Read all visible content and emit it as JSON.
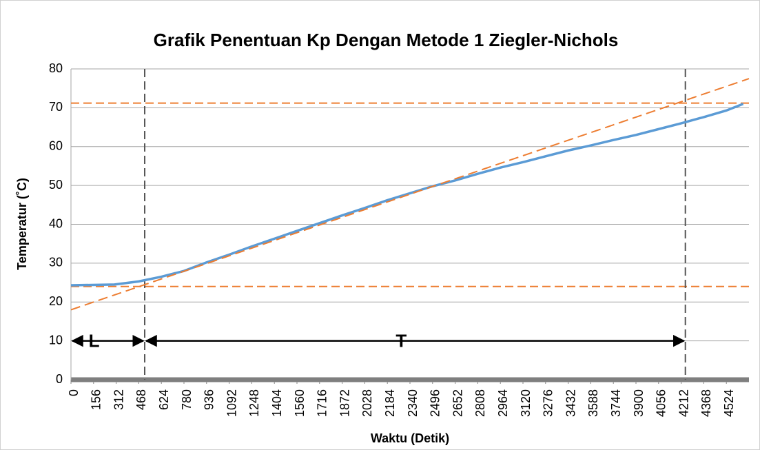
{
  "chart_data": {
    "type": "line",
    "title": "Grafik Penentuan Kp Dengan Metode 1 Ziegler-Nichols",
    "x_label": "Waktu (Detik)",
    "y_label": "Temperatur (˚C)",
    "xlim": [
      0,
      4680
    ],
    "xticks": [
      0,
      156,
      312,
      468,
      624,
      780,
      936,
      1092,
      1248,
      1404,
      1560,
      1716,
      1872,
      2028,
      2184,
      2340,
      2496,
      2652,
      2808,
      2964,
      3120,
      3276,
      3432,
      3588,
      3744,
      3900,
      4056,
      4212,
      4368,
      4524
    ],
    "ylim": [
      0,
      80
    ],
    "yticks": [
      0,
      10,
      20,
      30,
      40,
      50,
      60,
      70,
      80
    ],
    "grid": true,
    "series": [
      {
        "color": "#5b9bd5",
        "x": [
          0,
          300,
          468,
          624,
          780,
          936,
          1092,
          1248,
          1404,
          1560,
          1716,
          1872,
          2028,
          2184,
          2340,
          2496,
          2652,
          2808,
          2964,
          3120,
          3276,
          3432,
          3588,
          3744,
          3900,
          4056,
          4212,
          4368,
          4524,
          4640
        ],
        "values": [
          24.3,
          24.5,
          25.3,
          26.5,
          28,
          30.2,
          32.2,
          34.3,
          36.3,
          38.3,
          40.3,
          42.3,
          44.2,
          46.2,
          48,
          49.8,
          51.3,
          53,
          54.6,
          56,
          57.5,
          59,
          60.3,
          61.7,
          63,
          64.5,
          66,
          67.6,
          69.3,
          71
        ]
      },
      {
        "color": "#ed7d31",
        "dashed": true,
        "x": [
          0,
          4680
        ],
        "values": [
          18,
          77.5
        ]
      }
    ],
    "hlines": {
      "color": "#ed7d31",
      "values": [
        24,
        71.2
      ]
    },
    "vlines": {
      "color": "#555555",
      "values": [
        509,
        4241
      ]
    },
    "annotations": [
      {
        "text": "L",
        "x": [
          0,
          509
        ],
        "y": 10
      },
      {
        "text": "T",
        "x": [
          509,
          4241
        ],
        "y": 10
      }
    ]
  }
}
